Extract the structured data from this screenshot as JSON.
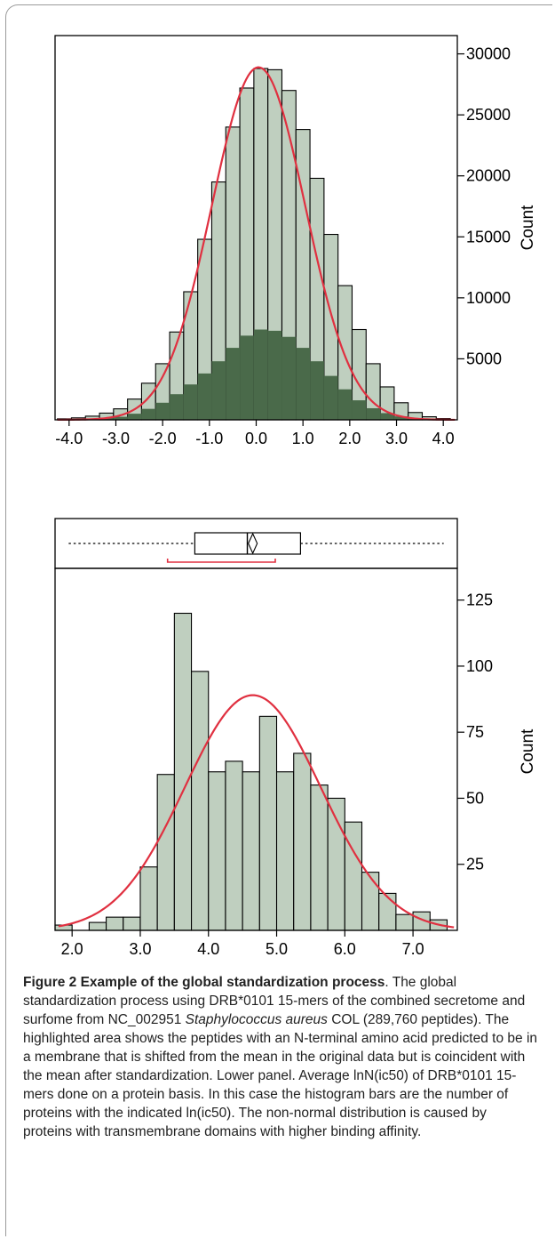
{
  "chart_data": [
    {
      "type": "bar",
      "subtype": "histogram",
      "panel": "top",
      "ylabel": "Count",
      "xlim": [
        -4.3,
        4.3
      ],
      "ylim": [
        0,
        31500
      ],
      "x_ticks": [
        -4.0,
        -3.0,
        -2.0,
        -1.0,
        0.0,
        1.0,
        2.0,
        3.0,
        4.0
      ],
      "x_tick_labels": [
        "-4.0",
        "-3.0",
        "-2.0",
        "-1.0",
        "0.0",
        "1.0",
        "2.0",
        "3.0",
        "4.0"
      ],
      "y_ticks": [
        5000,
        10000,
        15000,
        20000,
        25000,
        30000
      ],
      "y_tick_labels": [
        "5000",
        "10000",
        "15000",
        "20000",
        "25000",
        "30000"
      ],
      "bin_edges": [
        -4.25,
        -3.95,
        -3.65,
        -3.35,
        -3.05,
        -2.75,
        -2.45,
        -2.15,
        -1.85,
        -1.55,
        -1.25,
        -0.95,
        -0.65,
        -0.35,
        -0.05,
        0.25,
        0.55,
        0.85,
        1.15,
        1.45,
        1.75,
        2.05,
        2.35,
        2.65,
        2.95,
        3.25,
        3.55,
        3.85,
        4.15
      ],
      "series": [
        {
          "values": [
            80,
            160,
            300,
            550,
            900,
            1700,
            3000,
            4600,
            7200,
            10500,
            14800,
            19500,
            24000,
            27200,
            28800,
            28700,
            27000,
            23800,
            19800,
            15200,
            11000,
            7400,
            4600,
            2700,
            1400,
            600,
            250,
            100
          ],
          "color": "#bfcfbf"
        },
        {
          "values": [
            20,
            40,
            80,
            150,
            250,
            500,
            900,
            1400,
            2100,
            2900,
            3800,
            4800,
            5900,
            6900,
            7400,
            7300,
            6800,
            5900,
            4800,
            3600,
            2500,
            1600,
            950,
            550,
            280,
            120,
            50,
            20
          ],
          "color": "#4a6a4a"
        }
      ],
      "fit_curve": {
        "kind": "normal",
        "mean": 0.05,
        "sd": 1.0,
        "peak": 28900,
        "color": "#e03040"
      }
    },
    {
      "type": "bar",
      "subtype": "histogram",
      "panel": "bottom",
      "ylabel": "Count",
      "xlim": [
        1.75,
        7.65
      ],
      "ylim": [
        0,
        137
      ],
      "x_ticks": [
        2.0,
        3.0,
        4.0,
        5.0,
        6.0,
        7.0
      ],
      "x_tick_labels": [
        "2.0",
        "3.0",
        "4.0",
        "5.0",
        "6.0",
        "7.0"
      ],
      "y_ticks": [
        25,
        50,
        75,
        100,
        125
      ],
      "y_tick_labels": [
        "25",
        "50",
        "75",
        "100",
        "125"
      ],
      "bin_edges": [
        1.75,
        2.0,
        2.25,
        2.5,
        2.75,
        3.0,
        3.25,
        3.5,
        3.75,
        4.0,
        4.25,
        4.5,
        4.75,
        5.0,
        5.25,
        5.5,
        5.75,
        6.0,
        6.25,
        6.5,
        6.75,
        7.0,
        7.25,
        7.5
      ],
      "series": [
        {
          "values": [
            2,
            0,
            3,
            5,
            5,
            24,
            59,
            120,
            98,
            60,
            64,
            60,
            81,
            60,
            67,
            55,
            50,
            41,
            22,
            14,
            6,
            7,
            4
          ],
          "color": "#bfcfbf"
        }
      ],
      "fit_curve": {
        "kind": "normal",
        "mean": 4.65,
        "sd": 1.0,
        "peak": 89,
        "color": "#e03040"
      },
      "box_plot": {
        "q1": 3.8,
        "median": 4.57,
        "mean": 4.65,
        "q3": 5.35,
        "whisker_low": 1.95,
        "whisker_high": 7.45,
        "ci_low": 3.4,
        "ci_high": 4.98,
        "ci_color": "#e03040"
      }
    }
  ],
  "caption": {
    "title": "Figure 2 Example of the global standardization process",
    "text_before_species": ". The global standardization process using DRB*0101 15-mers of the combined secretome and surfome from NC_002951 ",
    "species": "Staphylococcus aureus",
    "text_after_species": " COL (289,760 peptides). The highlighted area shows the peptides with an N-terminal amino acid predicted to be in a membrane that is shifted from the mean in the original data but is coincident with the mean after standardization. Lower panel. Average lnN(ic50) of DRB*0101 15-mers done on a protein basis. In this case the histogram bars are the number of proteins with the indicated ln(ic50). The non-normal distribution is caused by proteins with transmembrane domains with higher binding affinity."
  }
}
